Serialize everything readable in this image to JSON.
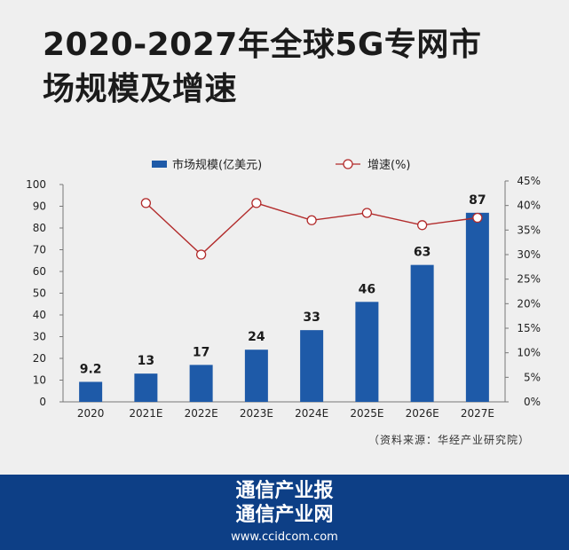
{
  "title": {
    "line1": "2020-2027年全球5G专网市",
    "line2": "场规模及增速"
  },
  "source": "（资料来源：华经产业研究院）",
  "footer": {
    "line1": "通信产业报",
    "line2": "通信产业网",
    "url": "www.ccidcom.com"
  },
  "colors": {
    "bar": "#1e5aa8",
    "line": "#b22b2b",
    "footer": "#0d3f86",
    "background": "#efefef"
  },
  "chart_data": {
    "type": "bar",
    "categories": [
      "2020",
      "2021E",
      "2022E",
      "2023E",
      "2024E",
      "2025E",
      "2026E",
      "2027E"
    ],
    "series": [
      {
        "name": "市场规模(亿美元)",
        "type": "bar",
        "axis": "left",
        "values": [
          9.2,
          13,
          17,
          24,
          33,
          46,
          63,
          87
        ],
        "labels": [
          "9.2",
          "13",
          "17",
          "24",
          "33",
          "46",
          "63",
          "87"
        ]
      },
      {
        "name": "增速(%)",
        "type": "line",
        "axis": "right",
        "values": [
          null,
          40.5,
          30,
          40.5,
          37,
          38.5,
          36,
          37.5
        ]
      }
    ],
    "yleft": {
      "lim": [
        0,
        100
      ],
      "ticks": [
        "0",
        "10",
        "20",
        "30",
        "40",
        "50",
        "60",
        "70",
        "80",
        "90",
        "100"
      ]
    },
    "yright": {
      "lim": [
        0,
        45
      ],
      "ticks": [
        "0%",
        "5%",
        "10%",
        "15%",
        "20%",
        "25%",
        "30%",
        "35%",
        "40%",
        "45%"
      ]
    },
    "legend_position": "top-center",
    "grid": false
  }
}
